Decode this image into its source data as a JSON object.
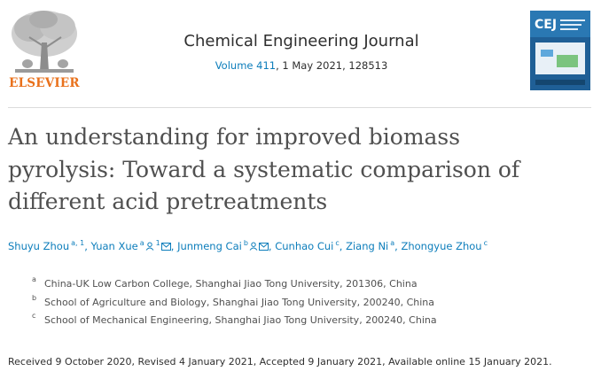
{
  "header": {
    "publisher": "ELSEVIER",
    "journal_title": "Chemical Engineering Journal",
    "volume_link": "Volume 411",
    "citation_rest": ", 1 May 2021, 128513",
    "cover_label": "CEJ"
  },
  "article": {
    "title_lines": [
      "An understanding for improved biomass",
      "pyrolysis: Toward a systematic comparison of",
      "different acid pretreatments"
    ]
  },
  "authors": [
    {
      "name": "Shuyu Zhou",
      "sup": "a, 1"
    },
    {
      "name": "Yuan Xue",
      "sup_a": "a",
      "sup_b": "1"
    },
    {
      "name": "Junmeng Cai",
      "sup": "b"
    },
    {
      "name": "Cunhao Cui",
      "sup": "c"
    },
    {
      "name": "Ziang Ni",
      "sup": "a"
    },
    {
      "name": "Zhongyue Zhou",
      "sup": "c"
    }
  ],
  "affiliations": [
    {
      "mark": "a",
      "text": "China-UK Low Carbon College, Shanghai Jiao Tong University, 201306, China"
    },
    {
      "mark": "b",
      "text": "School of Agriculture and Biology, Shanghai Jiao Tong University, 200240, China"
    },
    {
      "mark": "c",
      "text": "School of Mechanical Engineering, Shanghai Jiao Tong University, 200240, China"
    }
  ],
  "dates": "Received 9 October 2020, Revised 4 January 2021, Accepted 9 January 2021, Available online 15 January 2021.",
  "colors": {
    "link": "#0c7dbb",
    "publisher": "#e9711c",
    "title": "#505050"
  }
}
